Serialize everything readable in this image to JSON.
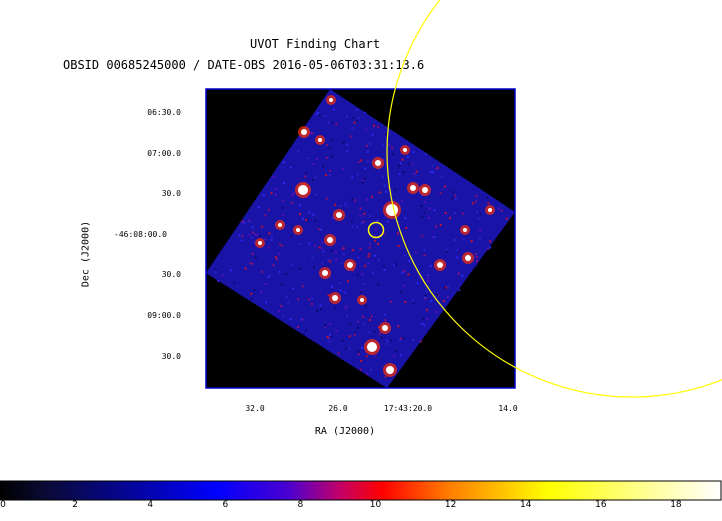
{
  "chart_data": {
    "type": "heatmap",
    "title": "UVOT Finding Chart",
    "subtitle": "OBSID 00685245000 / DATE-OBS 2016-05-06T03:31:13.6",
    "xlabel": "RA (J2000)",
    "ylabel": "Dec (J2000)",
    "x_ticks": [
      "32.0",
      "26.0",
      "17:43:20.0",
      "14.0"
    ],
    "y_ticks": [
      "06:30.0",
      "07:00.0",
      "30.0",
      "-46:08:00.0",
      "30.0",
      "09:00.0",
      "30.0"
    ],
    "colorbar": {
      "ticks": [
        "0",
        "2",
        "4",
        "6",
        "8",
        "10",
        "12",
        "14",
        "16",
        "18"
      ],
      "range": [
        0,
        19.2
      ],
      "colormap": "heat (black-blue-red-yellow-white)"
    },
    "overlays": [
      {
        "shape": "circle",
        "color": "#ffff00",
        "kind": "large error circle"
      },
      {
        "shape": "circle",
        "color": "#ffff00",
        "kind": "small source circle"
      }
    ],
    "colors": {
      "frame": "#0000cc",
      "background": "#000000",
      "overlay": "#ffff00"
    }
  }
}
